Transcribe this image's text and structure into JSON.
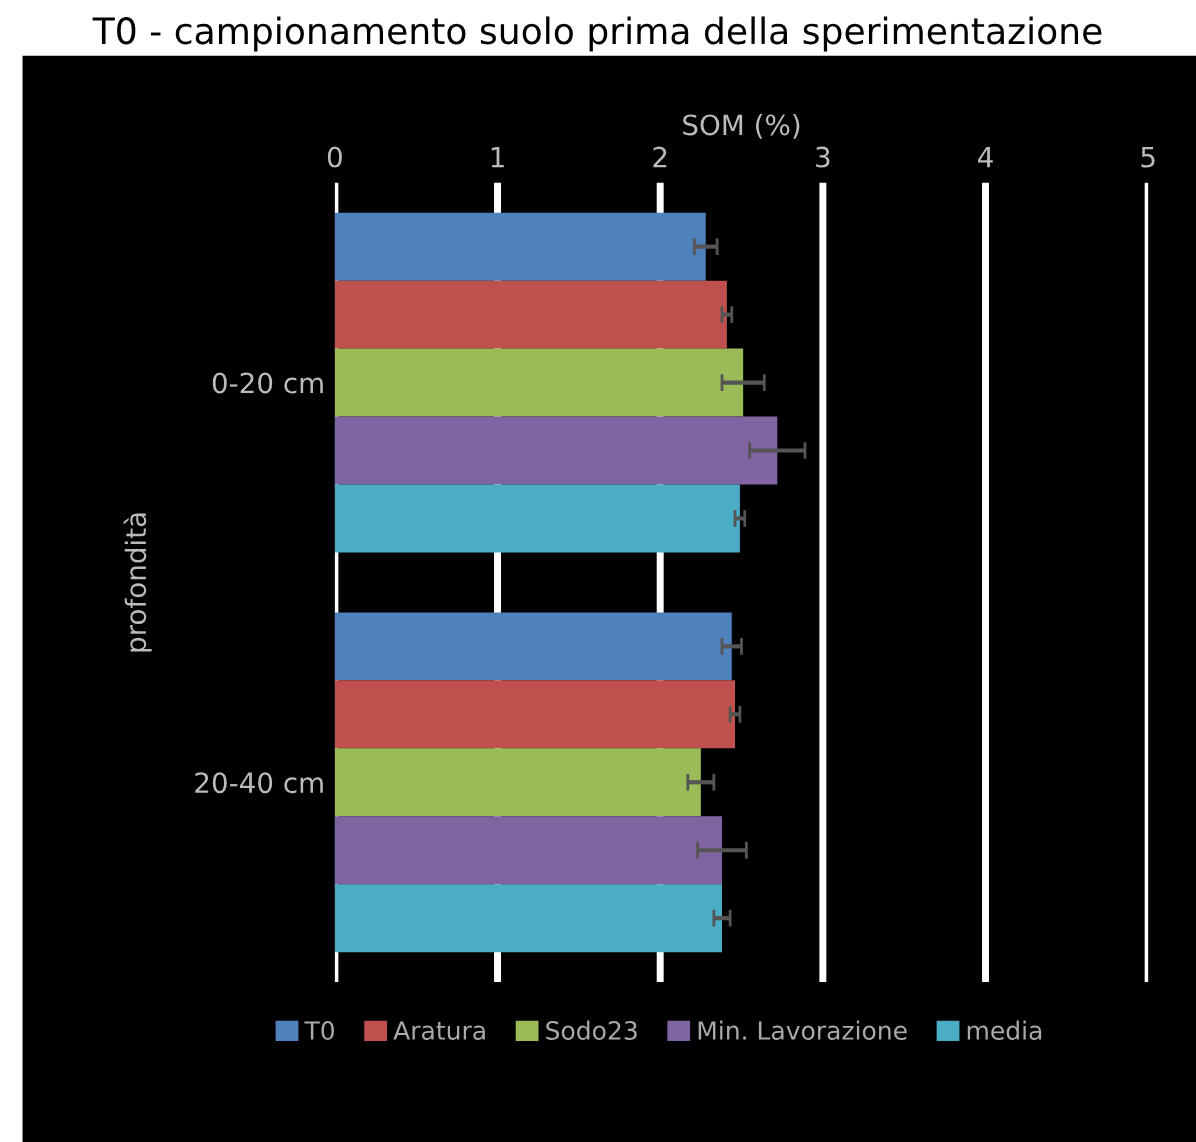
{
  "chart_data": {
    "type": "bar",
    "orientation": "horizontal",
    "title": "T0 - campionamento suolo prima della sperimentazione",
    "xlabel": "SOM (%)",
    "ylabel": "profondità",
    "categories": [
      "0-20 cm",
      "20-40 cm"
    ],
    "series": [
      {
        "name": "T0",
        "color": "#4f81bd",
        "values": [
          2.28,
          2.44
        ],
        "errors": [
          0.07,
          0.06
        ]
      },
      {
        "name": "Aratura",
        "color": "#c0504d",
        "values": [
          2.41,
          2.46
        ],
        "errors": [
          0.03,
          0.03
        ]
      },
      {
        "name": "Sodo23",
        "color": "#9bbb59",
        "values": [
          2.51,
          2.25
        ],
        "errors": [
          0.13,
          0.08
        ]
      },
      {
        "name": "Min. Lavorazione",
        "color": "#8064a2",
        "values": [
          2.72,
          2.38
        ],
        "errors": [
          0.17,
          0.15
        ]
      },
      {
        "name": "media",
        "color": "#4bacc6",
        "values": [
          2.49,
          2.38
        ],
        "errors": [
          0.03,
          0.05
        ]
      }
    ],
    "xlim": [
      0,
      5
    ],
    "xticks": [
      0,
      1,
      2,
      3,
      4,
      5
    ],
    "grid": "x",
    "legend": "bottom"
  }
}
